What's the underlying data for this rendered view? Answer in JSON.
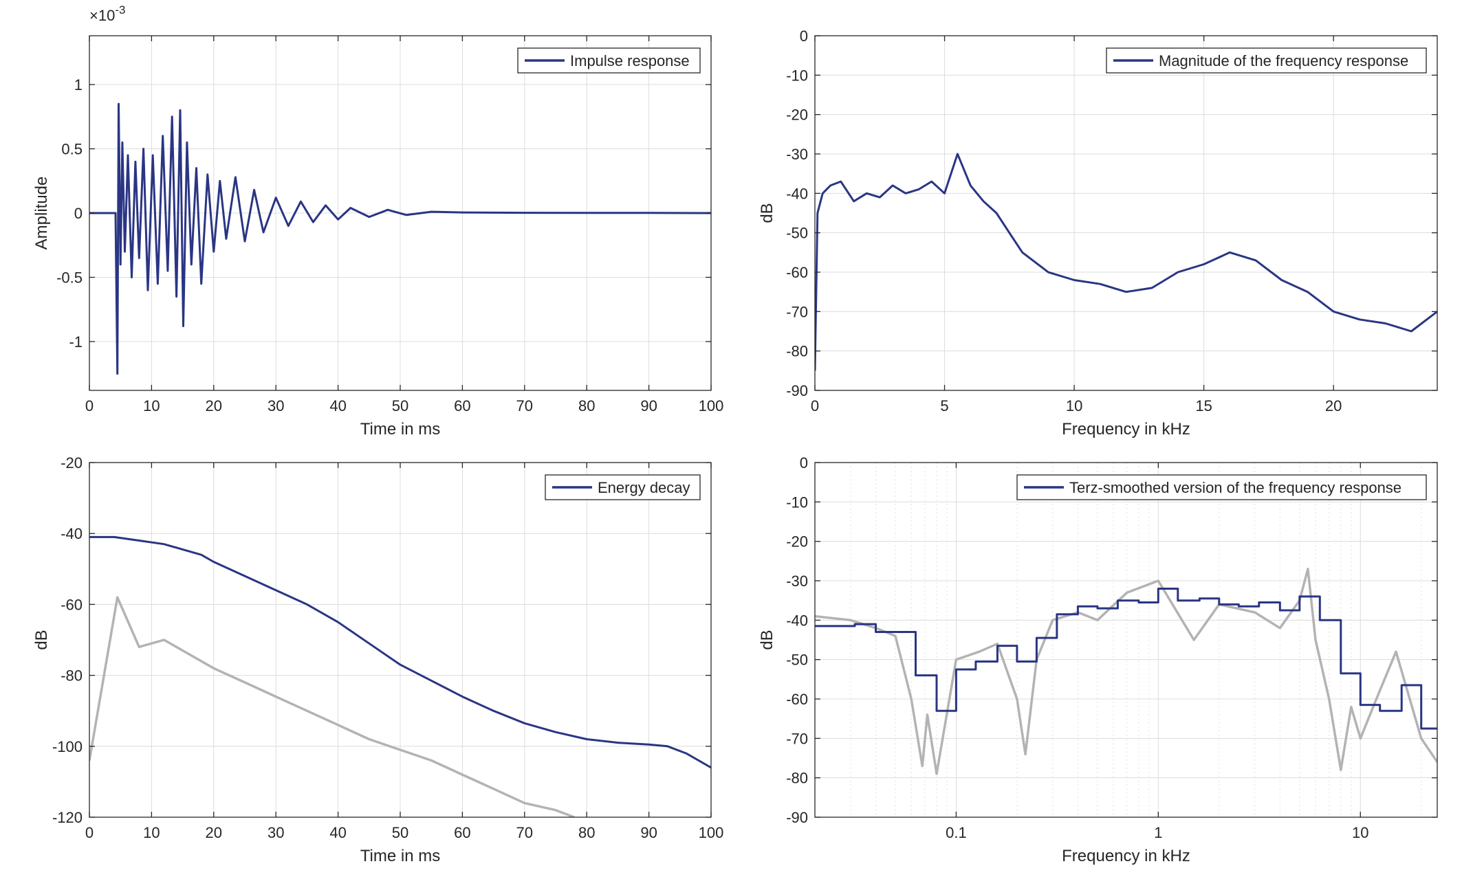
{
  "colors": {
    "blue": "#2a3584",
    "gray": "#b3b3b3",
    "axis": "#262626",
    "grid": "#dcdcdc"
  },
  "chart_data": [
    {
      "id": "impulse",
      "type": "line",
      "xlabel": "Time in ms",
      "ylabel": "Amplitude",
      "exponent_label": "×10",
      "exponent_power": "-3",
      "xlim": [
        0,
        100
      ],
      "ylim": [
        -1.38,
        1.38
      ],
      "xticks": [
        0,
        10,
        20,
        30,
        40,
        50,
        60,
        70,
        80,
        90,
        100
      ],
      "yticks": [
        -1,
        -0.5,
        0,
        0.5,
        1
      ],
      "legend": [
        "Impulse response"
      ],
      "legend_position": "top-right",
      "grid": true,
      "series": [
        {
          "name": "Impulse response",
          "color": "#2a3584",
          "x": [
            0,
            4.2,
            4.5,
            4.7,
            5.0,
            5.3,
            5.7,
            6.2,
            6.8,
            7.4,
            8.0,
            8.7,
            9.4,
            10.2,
            11.0,
            11.8,
            12.6,
            13.3,
            14.0,
            14.6,
            15.1,
            15.7,
            16.4,
            17.2,
            18.0,
            19.0,
            20.0,
            21.0,
            22.0,
            23.5,
            25.0,
            26.5,
            28.0,
            30.0,
            32.0,
            34.0,
            36.0,
            38.0,
            40.0,
            42.0,
            45.0,
            48.0,
            51.0,
            55.0,
            60.0,
            70.0,
            80.0,
            90.0,
            100.0
          ],
          "values": [
            0,
            0,
            -1.25,
            0.85,
            -0.4,
            0.55,
            -0.3,
            0.45,
            -0.5,
            0.4,
            -0.35,
            0.5,
            -0.6,
            0.45,
            -0.55,
            0.6,
            -0.45,
            0.75,
            -0.65,
            0.8,
            -0.88,
            0.55,
            -0.4,
            0.35,
            -0.55,
            0.3,
            -0.3,
            0.25,
            -0.2,
            0.28,
            -0.22,
            0.18,
            -0.15,
            0.12,
            -0.1,
            0.09,
            -0.07,
            0.06,
            -0.05,
            0.04,
            -0.03,
            0.025,
            -0.015,
            0.01,
            0.005,
            0.002,
            0.001,
            0.001,
            0
          ]
        }
      ]
    },
    {
      "id": "magnitude",
      "type": "line",
      "xlabel": "Frequency in kHz",
      "ylabel": "dB",
      "xlim": [
        0,
        24
      ],
      "ylim": [
        -90,
        0
      ],
      "xticks": [
        0,
        5,
        10,
        15,
        20
      ],
      "yticks": [
        0,
        -10,
        -20,
        -30,
        -40,
        -50,
        -60,
        -70,
        -80,
        -90
      ],
      "legend": [
        "Magnitude of the frequency response"
      ],
      "legend_position": "top-right",
      "grid": true,
      "series": [
        {
          "name": "Magnitude of the frequency response",
          "color": "#2a3584",
          "x": [
            0,
            0.1,
            0.3,
            0.6,
            1.0,
            1.5,
            2.0,
            2.5,
            3.0,
            3.5,
            4.0,
            4.5,
            5.0,
            5.5,
            6.0,
            6.5,
            7.0,
            7.5,
            8.0,
            9.0,
            10.0,
            11.0,
            12.0,
            13.0,
            14.0,
            15.0,
            16.0,
            17.0,
            18.0,
            19.0,
            20.0,
            21.0,
            22.0,
            23.0,
            24.0
          ],
          "values": [
            -85,
            -45,
            -40,
            -38,
            -37,
            -42,
            -40,
            -41,
            -38,
            -40,
            -39,
            -37,
            -40,
            -30,
            -38,
            -42,
            -45,
            -50,
            -55,
            -60,
            -62,
            -63,
            -65,
            -64,
            -60,
            -58,
            -55,
            -57,
            -62,
            -65,
            -70,
            -72,
            -73,
            -75,
            -70
          ]
        }
      ]
    },
    {
      "id": "decay",
      "type": "line",
      "xlabel": "Time in ms",
      "ylabel": "dB",
      "xlim": [
        0,
        100
      ],
      "ylim": [
        -120,
        -20
      ],
      "xticks": [
        0,
        10,
        20,
        30,
        40,
        50,
        60,
        70,
        80,
        90,
        100
      ],
      "yticks": [
        -20,
        -40,
        -60,
        -80,
        -100,
        -120
      ],
      "legend": [
        "Energy decay"
      ],
      "legend_position": "top-right",
      "grid": true,
      "series": [
        {
          "name": "Energy decay",
          "color": "#2a3584",
          "x": [
            0,
            4,
            8,
            12,
            15,
            18,
            20,
            25,
            30,
            35,
            40,
            45,
            50,
            55,
            60,
            65,
            70,
            75,
            80,
            85,
            90,
            93,
            96,
            100
          ],
          "values": [
            -41,
            -41,
            -42,
            -43,
            -44.5,
            -46,
            -48,
            -52,
            -56,
            -60,
            -65,
            -71,
            -77,
            -81.5,
            -86,
            -90,
            -93.5,
            -96,
            -98,
            -99,
            -99.5,
            -100,
            -102,
            -106
          ]
        },
        {
          "color": "#b3b3b3",
          "x": [
            0,
            4.5,
            8,
            12,
            16,
            20,
            25,
            30,
            35,
            40,
            45,
            50,
            55,
            60,
            65,
            70,
            75,
            78
          ],
          "values": [
            -104,
            -58,
            -72,
            -70,
            -74,
            -78,
            -82,
            -86,
            -90,
            -94,
            -98,
            -101,
            -104,
            -108,
            -112,
            -116,
            -118,
            -120
          ]
        }
      ]
    },
    {
      "id": "terz",
      "type": "line",
      "xlabel": "Frequency in kHz",
      "ylabel": "dB",
      "xscale": "log",
      "xlim": [
        0.02,
        24
      ],
      "ylim": [
        -90,
        0
      ],
      "xticks": [
        0.1,
        1,
        10
      ],
      "xticklabels": [
        "0.1",
        "1",
        "10"
      ],
      "yticks": [
        0,
        -10,
        -20,
        -30,
        -40,
        -50,
        -60,
        -70,
        -80,
        -90
      ],
      "legend": [
        "Terz-smoothed version of the frequency response"
      ],
      "legend_position": "top-right",
      "grid": true,
      "series": [
        {
          "name": "Terz-smoothed version of the frequency response",
          "color": "#2a3584",
          "step": true,
          "x": [
            0.02,
            0.0315,
            0.04,
            0.05,
            0.063,
            0.08,
            0.1,
            0.125,
            0.16,
            0.2,
            0.25,
            0.315,
            0.4,
            0.5,
            0.63,
            0.8,
            1.0,
            1.25,
            1.6,
            2.0,
            2.5,
            3.15,
            4.0,
            5.0,
            6.3,
            8.0,
            10.0,
            12.5,
            16.0,
            20.0,
            24.0
          ],
          "values": [
            -41.5,
            -41,
            -43,
            -43,
            -54,
            -63,
            -52.5,
            -50.5,
            -46.5,
            -50.5,
            -44.5,
            -38.5,
            -36.5,
            -37,
            -35,
            -35.5,
            -32,
            -35,
            -34.5,
            -36,
            -36.5,
            -35.5,
            -37.5,
            -34,
            -40,
            -53.5,
            -61.5,
            -63,
            -56.5,
            -67.5,
            -67.5
          ]
        },
        {
          "color": "#b3b3b3",
          "x": [
            0.02,
            0.03,
            0.04,
            0.05,
            0.06,
            0.068,
            0.072,
            0.08,
            0.1,
            0.13,
            0.16,
            0.2,
            0.22,
            0.25,
            0.3,
            0.4,
            0.5,
            0.7,
            1.0,
            1.5,
            2.0,
            3.0,
            4.0,
            5.0,
            5.5,
            6.0,
            7.0,
            8.0,
            9.0,
            10.0,
            12.0,
            15.0,
            20.0,
            24.0
          ],
          "values": [
            -39,
            -40,
            -42,
            -44,
            -60,
            -77,
            -64,
            -79,
            -50,
            -48,
            -46,
            -60,
            -74,
            -50,
            -40,
            -38,
            -40,
            -33,
            -30,
            -45,
            -36,
            -38,
            -42,
            -35,
            -27,
            -45,
            -60,
            -78,
            -62,
            -70,
            -60,
            -48,
            -70,
            -76
          ]
        }
      ]
    }
  ]
}
